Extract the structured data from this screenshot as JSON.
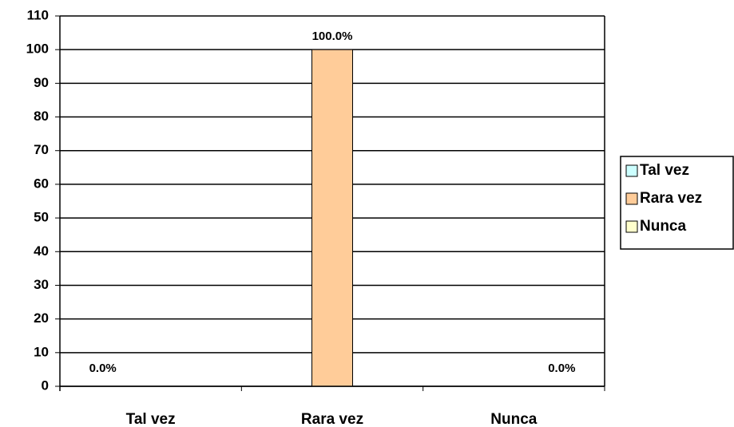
{
  "chart_data": {
    "type": "bar",
    "categories": [
      "Tal vez",
      "Rara vez",
      "Nunca"
    ],
    "series": [
      {
        "name": "Tal vez",
        "color": "#ccffff",
        "values": [
          0,
          null,
          null
        ],
        "value_labels": [
          "0.0%",
          null,
          null
        ]
      },
      {
        "name": "Rara vez",
        "color": "#ffcc99",
        "values": [
          null,
          100,
          null
        ],
        "value_labels": [
          null,
          "100.0%",
          null
        ]
      },
      {
        "name": "Nunca",
        "color": "#ffffcc",
        "values": [
          null,
          null,
          0
        ],
        "value_labels": [
          null,
          null,
          "0.0%"
        ]
      }
    ],
    "ylim": [
      0,
      110
    ],
    "yticks": [
      0,
      10,
      20,
      30,
      40,
      50,
      60,
      70,
      80,
      90,
      100,
      110
    ],
    "grid": true,
    "legend": "right"
  }
}
